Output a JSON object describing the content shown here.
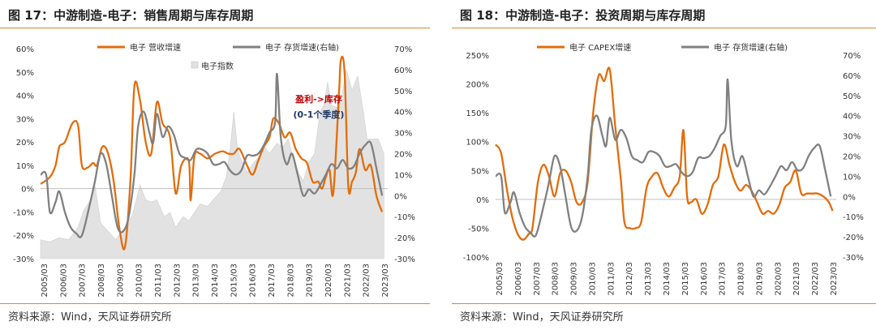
{
  "colors": {
    "orange": "#e36c0a",
    "gray": "#808080",
    "area": "#e2e2e2",
    "rule": "#d98a2b",
    "annotate_red": "#c00000",
    "annotate_navy": "#1f3864"
  },
  "panels": [
    {
      "title": "图 17：中游制造-电子：销售周期与库存周期",
      "source": "资料来源：Wind，天风证券研究所"
    },
    {
      "title": "图 18：中游制造-电子：投资周期与库存周期",
      "source": "资料来源：Wind，天风证券研究所"
    }
  ],
  "chart_data": [
    {
      "type": "line",
      "x_ticks": [
        "2005/03",
        "2006/03",
        "2007/03",
        "2008/03",
        "2009/03",
        "2010/03",
        "2011/03",
        "2012/03",
        "2013/03",
        "2014/03",
        "2015/03",
        "2016/03",
        "2017/03",
        "2018/03",
        "2019/03",
        "2020/03",
        "2021/03",
        "2022/03",
        "2023/03"
      ],
      "x_range": [
        2005.0,
        2023.5
      ],
      "ylim_left": [
        -30,
        60
      ],
      "ylim_right": [
        -30,
        70
      ],
      "y_ticks_left": [
        "60%",
        "50%",
        "40%",
        "30%",
        "20%",
        "10%",
        "0%",
        "-10%",
        "-20%",
        "-30%"
      ],
      "y_ticks_right": [
        "70%",
        "60%",
        "50%",
        "40%",
        "30%",
        "20%",
        "10%",
        "0%",
        "-10%",
        "-20%",
        "-30%"
      ],
      "legend": [
        {
          "label": "电子 营收增速",
          "kind": "line",
          "color": "#e36c0a"
        },
        {
          "label": "电子 存货增速(右轴)",
          "kind": "line",
          "color": "#808080"
        },
        {
          "label": "电子指数",
          "kind": "area",
          "color": "#e2e2e2"
        }
      ],
      "annotations": [
        "盈利->库存",
        "(0-1个季度)"
      ],
      "series": [
        {
          "name": "电子 营收增速",
          "axis": "left",
          "x": [
            2005.0,
            2005.5,
            2005.8,
            2006.0,
            2006.3,
            2006.7,
            2007.0,
            2007.2,
            2007.5,
            2007.8,
            2008.0,
            2008.3,
            2008.6,
            2008.9,
            2009.2,
            2009.5,
            2009.8,
            2010.0,
            2010.3,
            2010.6,
            2010.9,
            2011.2,
            2011.5,
            2011.9,
            2012.2,
            2012.5,
            2012.9,
            2013.0,
            2013.2,
            2013.5,
            2013.9,
            2014.3,
            2014.7,
            2015.0,
            2015.3,
            2015.6,
            2016.0,
            2016.3,
            2016.6,
            2016.9,
            2017.2,
            2017.4,
            2017.7,
            2018.0,
            2018.3,
            2018.6,
            2018.9,
            2019.2,
            2019.5,
            2019.8,
            2020.0,
            2020.2,
            2020.4,
            2020.6,
            2020.9,
            2021.0,
            2021.2,
            2021.4,
            2021.6,
            2021.8,
            2022.0,
            2022.3,
            2022.6,
            2022.9,
            2023.2
          ],
          "y": [
            2,
            5,
            10,
            18,
            20,
            28,
            27,
            10,
            9,
            11,
            10,
            18,
            15,
            3,
            -17,
            -25,
            5,
            44,
            38,
            20,
            15,
            37,
            28,
            22,
            -2,
            10,
            12,
            -5,
            14,
            15,
            13,
            15,
            16,
            15,
            15,
            17,
            10,
            6,
            12,
            18,
            22,
            30,
            28,
            22,
            24,
            17,
            13,
            11,
            3,
            3,
            0,
            5,
            8,
            -2,
            40,
            55,
            50,
            1,
            3,
            7,
            17,
            8,
            10,
            -3,
            -10
          ]
        },
        {
          "name": "电子 存货增速(右轴)",
          "axis": "right",
          "x": [
            2005.0,
            2005.3,
            2005.5,
            2005.8,
            2006.0,
            2006.3,
            2006.6,
            2006.9,
            2007.2,
            2007.6,
            2007.9,
            2008.2,
            2008.5,
            2008.8,
            2009.1,
            2009.4,
            2009.7,
            2010.0,
            2010.2,
            2010.5,
            2010.8,
            2011.0,
            2011.2,
            2011.5,
            2011.8,
            2012.1,
            2012.4,
            2012.7,
            2013.0,
            2013.3,
            2013.6,
            2013.9,
            2014.2,
            2014.5,
            2014.8,
            2015.1,
            2015.4,
            2015.7,
            2016.0,
            2016.3,
            2016.6,
            2016.9,
            2017.2,
            2017.5,
            2017.6,
            2017.8,
            2018.1,
            2018.4,
            2018.7,
            2019.0,
            2019.3,
            2019.6,
            2019.9,
            2020.2,
            2020.5,
            2020.8,
            2021.1,
            2021.4,
            2021.7,
            2022.0,
            2022.3,
            2022.6,
            2022.9,
            2023.2
          ],
          "y": [
            10,
            10,
            -8,
            -3,
            2,
            -8,
            -15,
            -18,
            -19,
            -5,
            7,
            20,
            15,
            0,
            -15,
            -17,
            -10,
            10,
            33,
            40,
            30,
            25,
            39,
            28,
            33,
            29,
            20,
            18,
            17,
            22,
            22,
            20,
            15,
            15,
            16,
            12,
            10,
            12,
            19,
            19,
            20,
            24,
            30,
            35,
            58,
            28,
            15,
            20,
            10,
            0,
            3,
            1,
            5,
            10,
            15,
            13,
            17,
            13,
            14,
            20,
            24,
            25,
            13,
            0
          ]
        },
        {
          "name": "电子指数",
          "axis": "right",
          "x": [
            2005.0,
            2005.5,
            2006.0,
            2006.5,
            2007.0,
            2007.3,
            2007.6,
            2007.9,
            2008.2,
            2008.6,
            2009.0,
            2009.5,
            2009.9,
            2010.3,
            2010.6,
            2010.9,
            2011.2,
            2011.6,
            2011.9,
            2012.2,
            2012.6,
            2012.9,
            2013.2,
            2013.5,
            2013.9,
            2014.2,
            2014.6,
            2014.9,
            2015.1,
            2015.3,
            2015.5,
            2015.7,
            2016.0,
            2016.3,
            2016.6,
            2016.9,
            2017.2,
            2017.6,
            2017.9,
            2018.2,
            2018.5,
            2018.8,
            2019.0,
            2019.3,
            2019.6,
            2019.9,
            2020.1,
            2020.3,
            2020.5,
            2020.8,
            2021.0,
            2021.3,
            2021.6,
            2021.9,
            2022.2,
            2022.4,
            2022.7,
            2023.0,
            2023.3
          ],
          "y": [
            -21,
            -22,
            -20,
            -21,
            -15,
            -7,
            -3,
            5,
            -13,
            -17,
            -21,
            -15,
            -9,
            5,
            -2,
            -3,
            -2,
            -10,
            -8,
            -15,
            -10,
            -12,
            -8,
            -4,
            -5,
            -2,
            2,
            9,
            22,
            40,
            22,
            17,
            11,
            15,
            18,
            24,
            20,
            25,
            23,
            27,
            17,
            10,
            7,
            16,
            20,
            40,
            43,
            54,
            43,
            42,
            45,
            60,
            50,
            57,
            40,
            27,
            27,
            27,
            20
          ]
        }
      ]
    },
    {
      "type": "line",
      "x_ticks": [
        "2005/03",
        "2006/03",
        "2007/03",
        "2008/03",
        "2009/03",
        "2010/03",
        "2011/03",
        "2012/03",
        "2013/03",
        "2014/03",
        "2015/03",
        "2016/03",
        "2017/03",
        "2018/03",
        "2019/03",
        "2020/03",
        "2021/03",
        "2022/03",
        "2023/03"
      ],
      "x_range": [
        2005.0,
        2023.5
      ],
      "ylim_left": [
        -100,
        250
      ],
      "ylim_right": [
        -30,
        70
      ],
      "y_ticks_left": [
        "250%",
        "200%",
        "150%",
        "100%",
        "50%",
        "0%",
        "-50%",
        "-100%"
      ],
      "y_ticks_right": [
        "70%",
        "60%",
        "50%",
        "40%",
        "30%",
        "20%",
        "10%",
        "0%",
        "-10%",
        "-20%",
        "-30%"
      ],
      "legend": [
        {
          "label": "电子 CAPEX增速",
          "kind": "line",
          "color": "#e36c0a"
        },
        {
          "label": "电子 存货增速(右轴)",
          "kind": "line",
          "color": "#808080"
        }
      ],
      "series": [
        {
          "name": "电子 CAPEX增速",
          "axis": "left",
          "x": [
            2005.0,
            2005.3,
            2005.6,
            2005.9,
            2006.2,
            2006.5,
            2006.8,
            2007.0,
            2007.3,
            2007.6,
            2007.9,
            2008.2,
            2008.5,
            2008.8,
            2009.1,
            2009.4,
            2009.7,
            2010.0,
            2010.3,
            2010.6,
            2010.9,
            2011.2,
            2011.5,
            2011.8,
            2012.0,
            2012.3,
            2012.6,
            2012.9,
            2013.2,
            2013.5,
            2013.8,
            2014.1,
            2014.4,
            2014.7,
            2015.0,
            2015.2,
            2015.4,
            2015.6,
            2015.9,
            2016.2,
            2016.5,
            2016.8,
            2017.1,
            2017.4,
            2017.7,
            2018.0,
            2018.3,
            2018.6,
            2018.9,
            2019.2,
            2019.5,
            2019.8,
            2020.1,
            2020.4,
            2020.7,
            2021.0,
            2021.3,
            2021.6,
            2021.9,
            2022.2,
            2022.5,
            2022.8,
            2023.1,
            2023.3
          ],
          "y": [
            95,
            80,
            20,
            -30,
            -60,
            -70,
            -60,
            -50,
            30,
            60,
            40,
            5,
            45,
            50,
            30,
            -5,
            -5,
            30,
            150,
            215,
            205,
            225,
            125,
            35,
            -40,
            -50,
            -50,
            -40,
            20,
            40,
            45,
            20,
            5,
            20,
            40,
            120,
            5,
            -5,
            0,
            -25,
            -10,
            25,
            40,
            95,
            60,
            30,
            15,
            25,
            15,
            -5,
            -25,
            -20,
            -25,
            -10,
            20,
            30,
            50,
            10,
            10,
            10,
            10,
            5,
            -5,
            -20
          ]
        },
        {
          "name": "电子 存货增速(右轴)",
          "axis": "right",
          "x": [
            2005.0,
            2005.3,
            2005.5,
            2005.8,
            2006.0,
            2006.3,
            2006.6,
            2006.9,
            2007.2,
            2007.6,
            2007.9,
            2008.2,
            2008.5,
            2008.8,
            2009.1,
            2009.4,
            2009.7,
            2010.0,
            2010.2,
            2010.5,
            2010.8,
            2011.0,
            2011.2,
            2011.5,
            2011.8,
            2012.1,
            2012.4,
            2012.7,
            2013.0,
            2013.3,
            2013.6,
            2013.9,
            2014.2,
            2014.5,
            2014.8,
            2015.1,
            2015.4,
            2015.7,
            2016.0,
            2016.3,
            2016.6,
            2016.9,
            2017.2,
            2017.5,
            2017.6,
            2017.8,
            2018.1,
            2018.4,
            2018.7,
            2019.0,
            2019.3,
            2019.6,
            2019.9,
            2020.2,
            2020.5,
            2020.8,
            2021.1,
            2021.4,
            2021.7,
            2022.0,
            2022.3,
            2022.6,
            2022.9,
            2023.2
          ],
          "y": [
            10,
            10,
            -8,
            -3,
            2,
            -8,
            -15,
            -18,
            -19,
            -5,
            7,
            20,
            15,
            0,
            -15,
            -17,
            -10,
            10,
            33,
            40,
            30,
            25,
            39,
            28,
            33,
            29,
            20,
            18,
            17,
            22,
            22,
            20,
            15,
            15,
            16,
            12,
            10,
            12,
            19,
            19,
            20,
            24,
            30,
            35,
            58,
            28,
            15,
            20,
            10,
            0,
            3,
            1,
            5,
            10,
            15,
            13,
            17,
            13,
            14,
            20,
            24,
            25,
            13,
            0
          ]
        }
      ]
    }
  ]
}
